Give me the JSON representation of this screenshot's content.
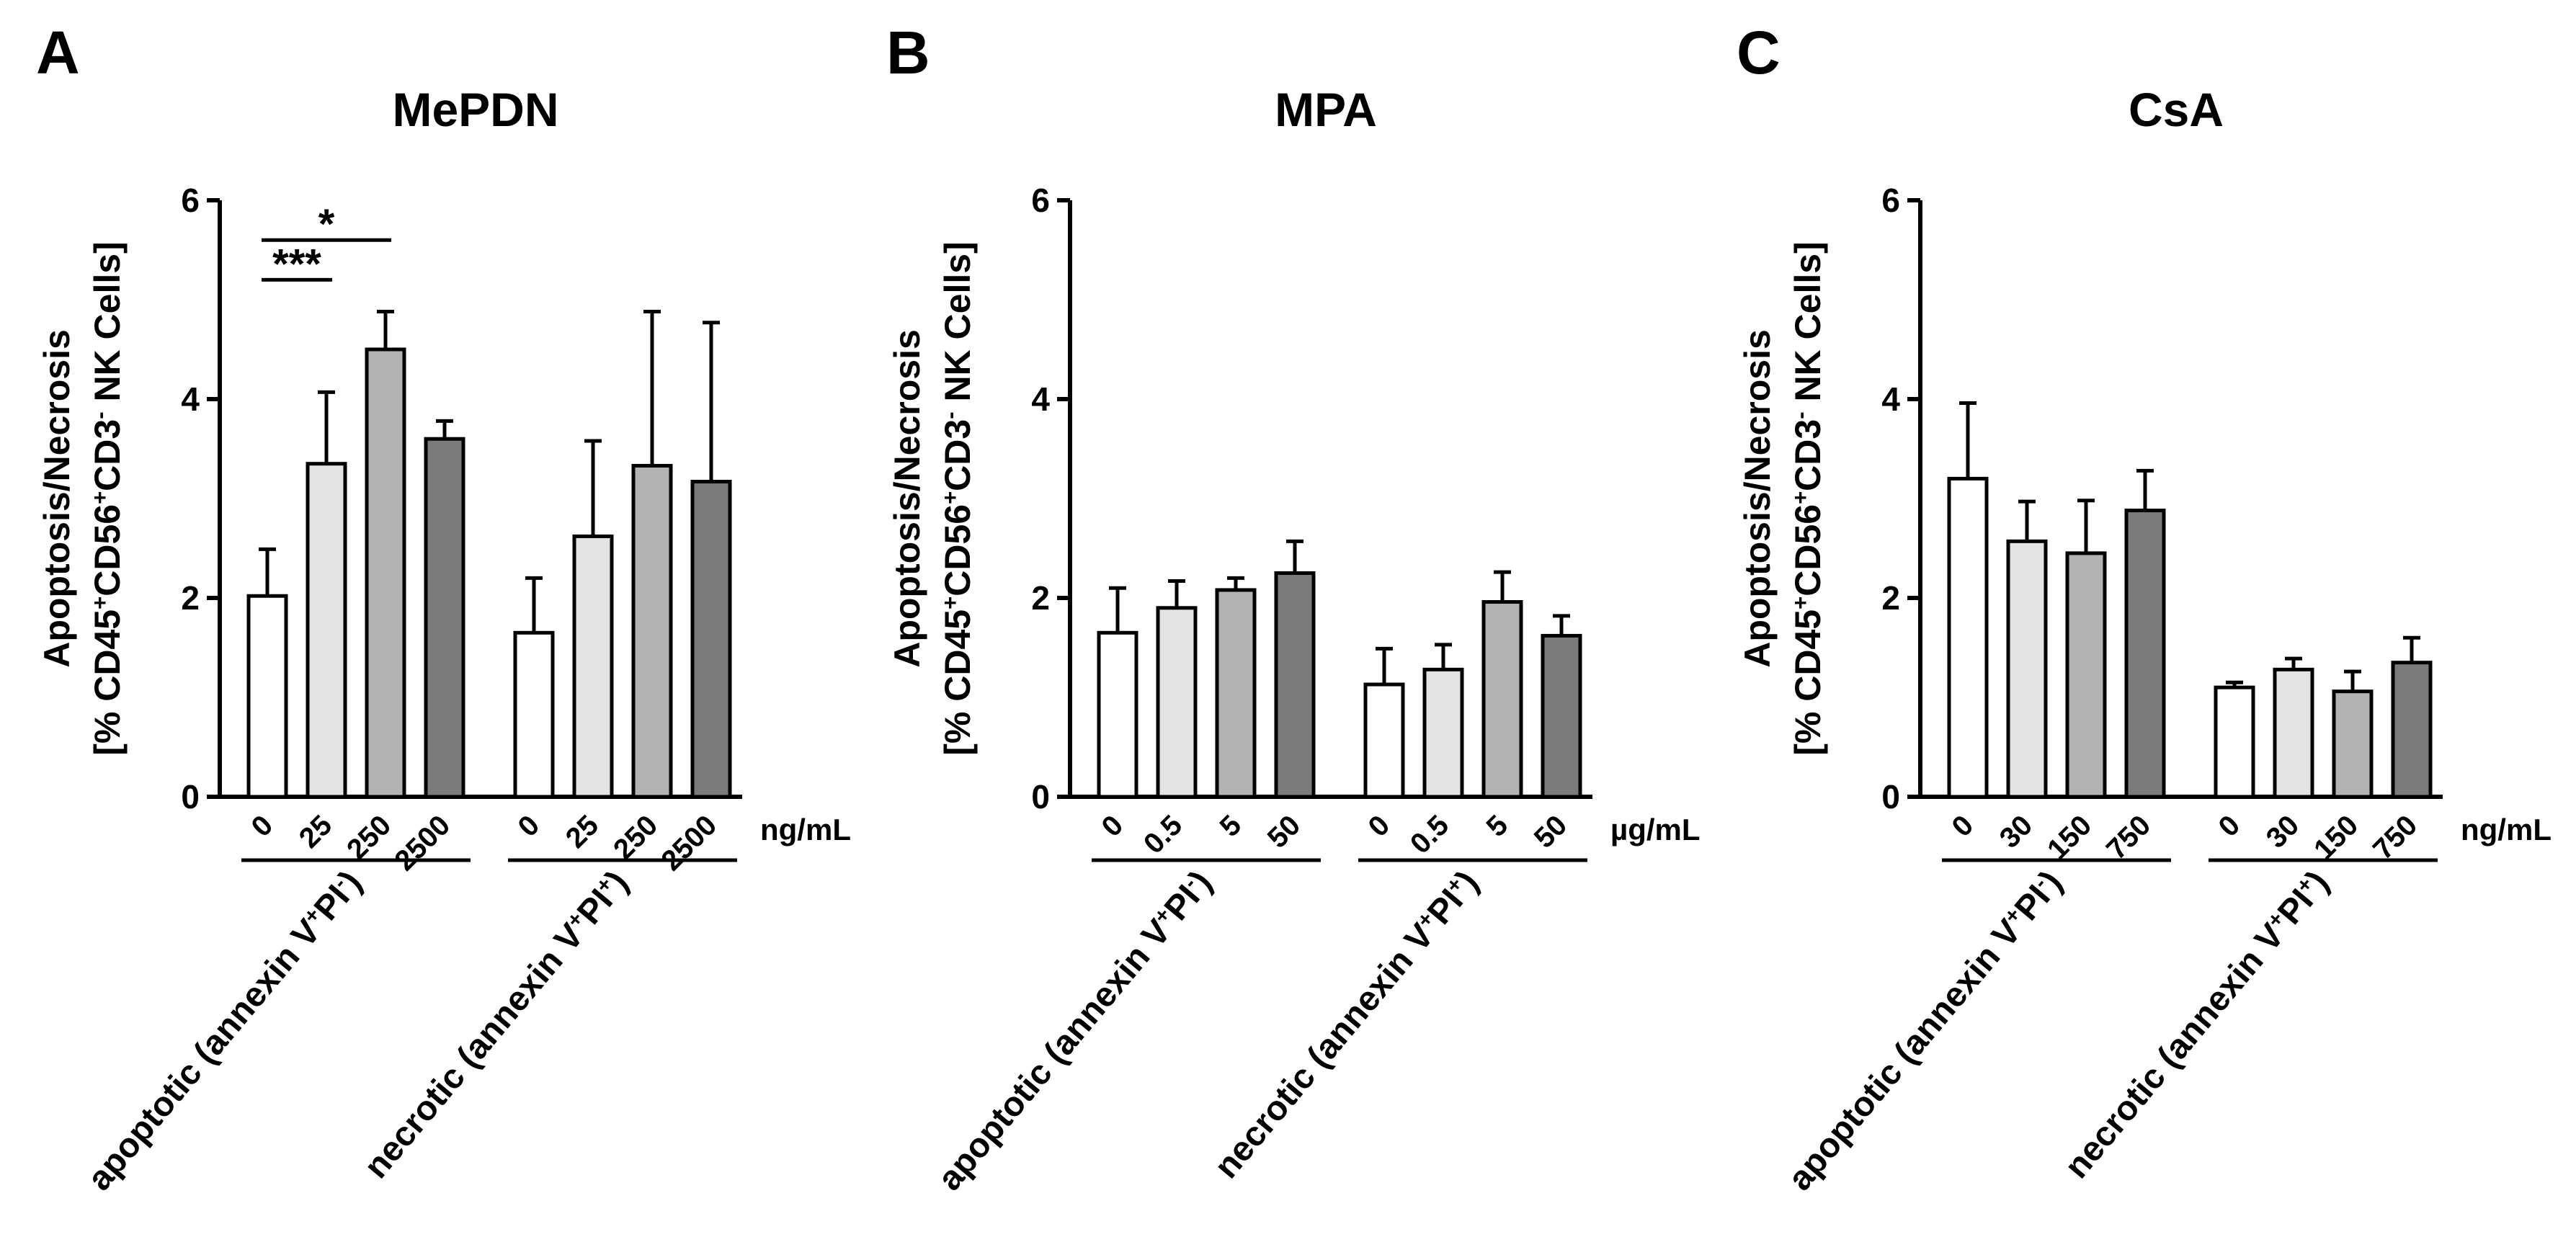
{
  "chart_data": [
    {
      "type": "bar",
      "panel": "A",
      "title": "MePDN",
      "ylabel_line1": "Apoptosis/Necrosis",
      "ylabel_line2": [
        "[% CD45",
        "+",
        "CD56",
        "+",
        "CD3",
        "-",
        " NK Cells]"
      ],
      "unit": "ng/mL",
      "ylim": [
        0,
        6
      ],
      "yticks": [
        "0",
        "2",
        "4",
        "6"
      ],
      "categories": [
        "0",
        "25",
        "250",
        "2500"
      ],
      "colors": [
        "#ffffff",
        "#e3e3e3",
        "#b3b3b3",
        "#7b7b7b"
      ],
      "groups": [
        {
          "label": [
            "apoptotic (annexin V",
            "+",
            "PI",
            "-",
            ")"
          ],
          "values": [
            2.02,
            3.35,
            4.5,
            3.6
          ],
          "errors": [
            0.47,
            0.72,
            0.38,
            0.18
          ]
        },
        {
          "label": [
            "necrotic (annexin V",
            "+",
            "PI",
            "+",
            ")"
          ],
          "values": [
            1.65,
            2.62,
            3.33,
            3.17
          ],
          "errors": [
            0.55,
            0.96,
            1.55,
            1.6
          ]
        }
      ],
      "significance": [
        {
          "label": "*",
          "from": 0,
          "to": 2,
          "y": 5.6
        },
        {
          "label": "***",
          "from": 0,
          "to": 1,
          "y": 5.2
        }
      ]
    },
    {
      "type": "bar",
      "panel": "B",
      "title": "MPA",
      "ylabel_line1": "Apoptosis/Necrosis",
      "ylabel_line2": [
        "[% CD45",
        "+",
        "CD56",
        "+",
        "CD3",
        "-",
        " NK Cells]"
      ],
      "unit": "µg/mL",
      "ylim": [
        0,
        6
      ],
      "yticks": [
        "0",
        "2",
        "4",
        "6"
      ],
      "categories": [
        "0",
        "0.5",
        "5",
        "50"
      ],
      "colors": [
        "#ffffff",
        "#e3e3e3",
        "#b3b3b3",
        "#7b7b7b"
      ],
      "groups": [
        {
          "label": [
            "apoptotic (annexin V",
            "+",
            "PI",
            "-",
            ")"
          ],
          "values": [
            1.65,
            1.9,
            2.08,
            2.25
          ],
          "errors": [
            0.45,
            0.27,
            0.12,
            0.32
          ]
        },
        {
          "label": [
            "necrotic (annexin V",
            "+",
            "PI",
            "+",
            ")"
          ],
          "values": [
            1.13,
            1.28,
            1.96,
            1.62
          ],
          "errors": [
            0.36,
            0.25,
            0.3,
            0.2
          ]
        }
      ],
      "significance": []
    },
    {
      "type": "bar",
      "panel": "C",
      "title": "CsA",
      "ylabel_line1": "Apoptosis/Necrosis",
      "ylabel_line2": [
        "[% CD45",
        "+",
        "CD56",
        "+",
        "CD3",
        "-",
        " NK Cells]"
      ],
      "unit": "ng/mL",
      "ylim": [
        0,
        6
      ],
      "yticks": [
        "0",
        "2",
        "4",
        "6"
      ],
      "categories": [
        "0",
        "30",
        "150",
        "750"
      ],
      "colors": [
        "#ffffff",
        "#e3e3e3",
        "#b3b3b3",
        "#7b7b7b"
      ],
      "groups": [
        {
          "label": [
            "apoptotic (annexin V",
            "+",
            "PI",
            "-",
            ")"
          ],
          "values": [
            3.2,
            2.57,
            2.45,
            2.88
          ],
          "errors": [
            0.76,
            0.4,
            0.53,
            0.4
          ]
        },
        {
          "label": [
            "necrotic (annexin V",
            "+",
            "PI",
            "+",
            ")"
          ],
          "values": [
            1.1,
            1.28,
            1.06,
            1.35
          ],
          "errors": [
            0.05,
            0.11,
            0.2,
            0.25
          ]
        }
      ],
      "significance": []
    }
  ]
}
